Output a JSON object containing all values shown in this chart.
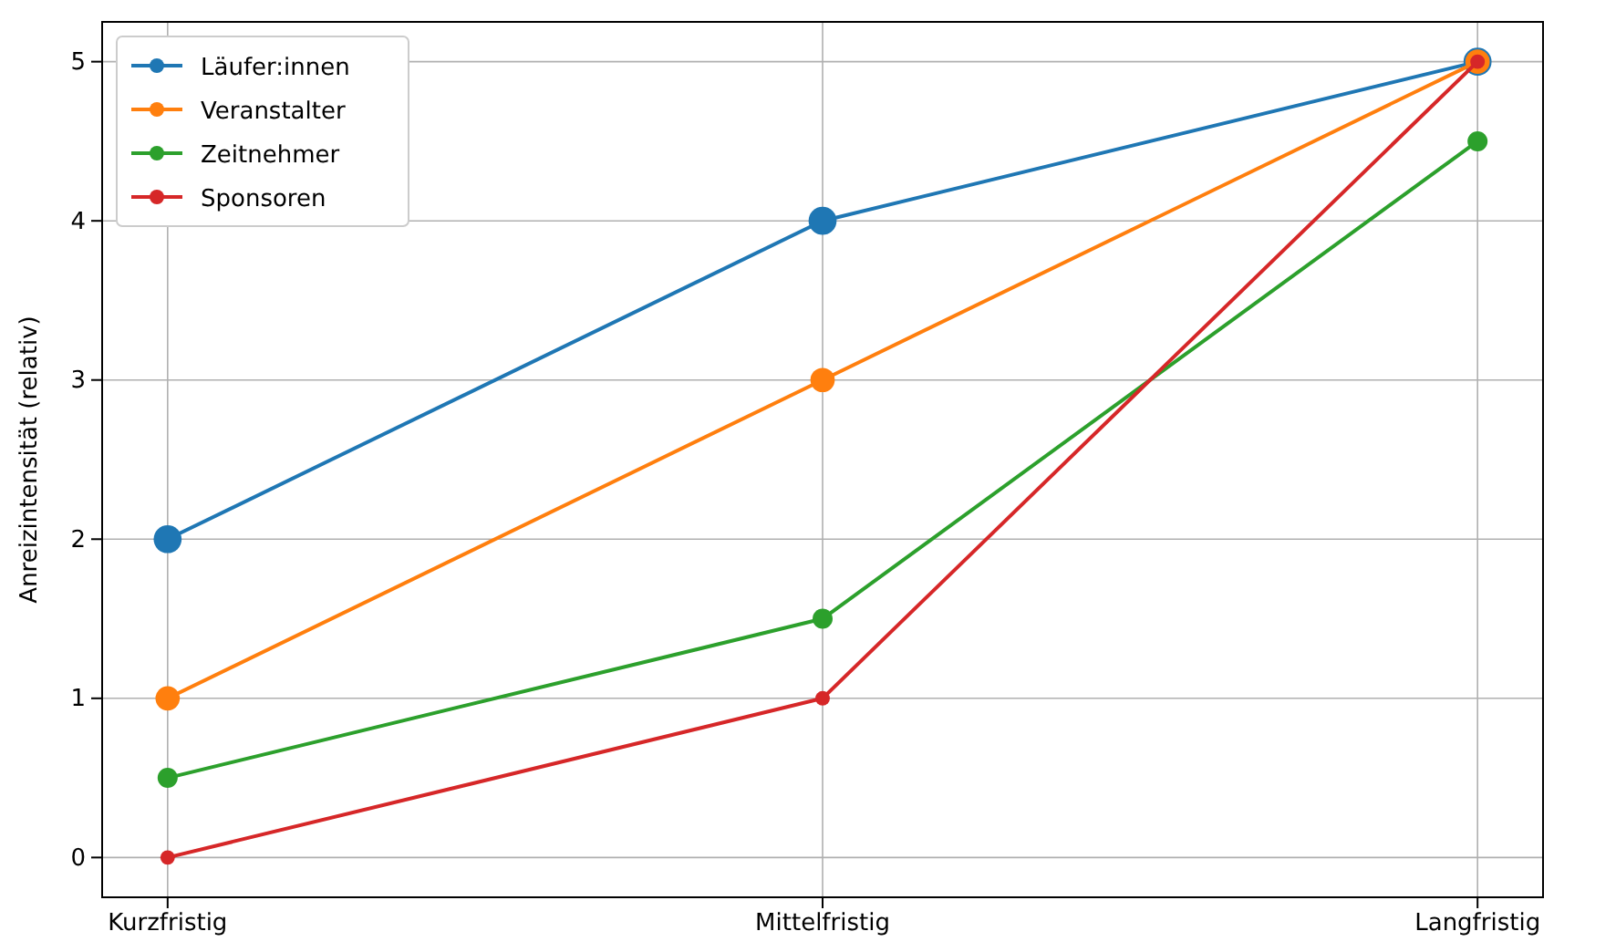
{
  "chart_data": {
    "type": "line",
    "ylabel": "Anreizintensität (relativ)",
    "categories": [
      "Kurzfristig",
      "Mittelfristig",
      "Langfristig"
    ],
    "series": [
      {
        "name": "Läufer:innen",
        "color": "#1f77b4",
        "values": [
          2,
          4,
          5
        ]
      },
      {
        "name": "Veranstalter",
        "color": "#ff7f0e",
        "values": [
          1,
          3,
          5
        ]
      },
      {
        "name": "Zeitnehmer",
        "color": "#2ca02c",
        "values": [
          0.5,
          1.5,
          4.5
        ]
      },
      {
        "name": "Sponsoren",
        "color": "#d62728",
        "values": [
          0,
          1,
          5
        ]
      }
    ],
    "ylim": [
      -0.25,
      5.25
    ],
    "yticks": [
      0,
      1,
      2,
      3,
      4,
      5
    ],
    "grid": true,
    "legend": "top left",
    "marker": "circle",
    "line_style": "solid"
  }
}
